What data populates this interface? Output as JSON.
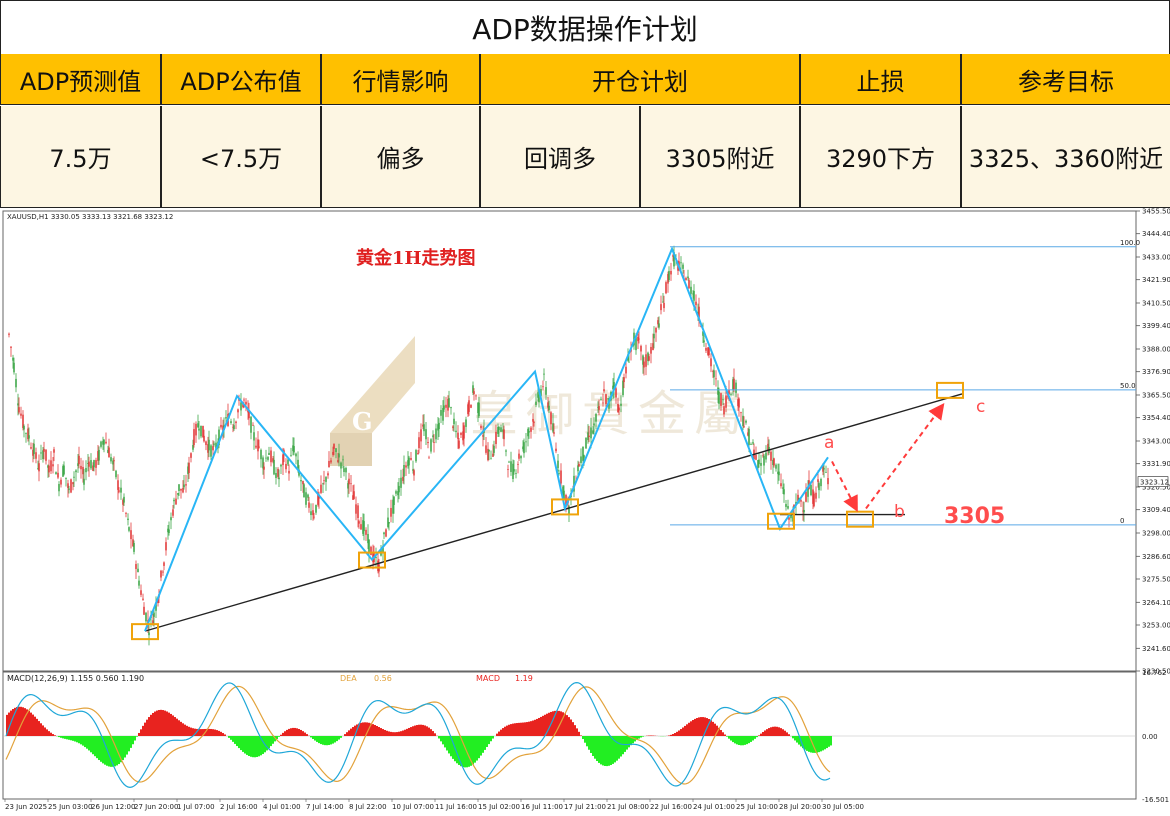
{
  "plan": {
    "title": "ADP数据操作计划",
    "headers": [
      "ADP预测值",
      "ADP公布值",
      "行情影响",
      "开仓计划",
      "止损",
      "参考目标"
    ],
    "values": [
      "7.5万",
      "<7.5万",
      "偏多",
      "回调多",
      "3305附近",
      "3290下方",
      "3325、3360附近"
    ]
  },
  "chart_header": {
    "symbol_info": "XAUUSD,H1  3330.05 3333.13 3321.68 3323.12",
    "title": "黄金1H走势图",
    "watermark": "皇御貴金屬",
    "watermark_logo": "G"
  },
  "chart_data": {
    "type": "line",
    "title": "黄金1H走势图",
    "symbol": "XAUUSD,H1",
    "ohlc": {
      "open": 3330.05,
      "high": 3333.13,
      "low": 3321.68,
      "close": 3323.12
    },
    "y_axis_ticks": [
      "3455.50",
      "3444.40",
      "3433.00",
      "3421.90",
      "3410.50",
      "3399.40",
      "3388.00",
      "3376.90",
      "3365.50",
      "3354.40",
      "3343.00",
      "3331.90",
      "3320.50",
      "3309.40",
      "3298.00",
      "3286.60",
      "3275.50",
      "3264.10",
      "3253.00",
      "3241.60",
      "3230.50"
    ],
    "ylim": [
      3230.5,
      3455.5
    ],
    "last_price_label": "3323.12",
    "x_axis_ticks": [
      "23 Jun 2025",
      "25 Jun 03:00",
      "26 Jun 12:00",
      "27 Jun 20:00",
      "1 Jul 07:00",
      "2 Jul 16:00",
      "4 Jul 01:00",
      "7 Jul 14:00",
      "8 Jul 22:00",
      "10 Jul 07:00",
      "11 Jul 16:00",
      "15 Jul 02:00",
      "16 Jul 11:00",
      "17 Jul 21:00",
      "21 Jul 08:00",
      "22 Jul 16:00",
      "24 Jul 01:00",
      "25 Jul 10:00",
      "28 Jul 20:00",
      "30 Jul 05:00"
    ],
    "price_series": [
      [
        0,
        3395
      ],
      [
        5,
        3380
      ],
      [
        10,
        3360
      ],
      [
        15,
        3350
      ],
      [
        20,
        3345
      ],
      [
        25,
        3338
      ],
      [
        30,
        3330
      ],
      [
        35,
        3340
      ],
      [
        40,
        3328
      ],
      [
        45,
        3336
      ],
      [
        50,
        3322
      ],
      [
        55,
        3330
      ],
      [
        60,
        3318
      ],
      [
        65,
        3326
      ],
      [
        70,
        3332
      ],
      [
        75,
        3325
      ],
      [
        80,
        3334
      ],
      [
        85,
        3330
      ],
      [
        90,
        3336
      ],
      [
        95,
        3345
      ],
      [
        100,
        3338
      ],
      [
        105,
        3330
      ],
      [
        110,
        3320
      ],
      [
        115,
        3312
      ],
      [
        120,
        3300
      ],
      [
        125,
        3290
      ],
      [
        130,
        3275
      ],
      [
        135,
        3262
      ],
      [
        140,
        3252
      ],
      [
        145,
        3258
      ],
      [
        150,
        3270
      ],
      [
        155,
        3285
      ],
      [
        160,
        3300
      ],
      [
        165,
        3312
      ],
      [
        170,
        3320
      ],
      [
        175,
        3318
      ],
      [
        180,
        3330
      ],
      [
        185,
        3345
      ],
      [
        190,
        3352
      ],
      [
        195,
        3345
      ],
      [
        200,
        3340
      ],
      [
        205,
        3338
      ],
      [
        210,
        3345
      ],
      [
        215,
        3350
      ],
      [
        220,
        3355
      ],
      [
        225,
        3352
      ],
      [
        230,
        3360
      ],
      [
        235,
        3362
      ],
      [
        240,
        3355
      ],
      [
        245,
        3345
      ],
      [
        250,
        3340
      ],
      [
        255,
        3332
      ],
      [
        260,
        3338
      ],
      [
        265,
        3330
      ],
      [
        270,
        3325
      ],
      [
        275,
        3335
      ],
      [
        280,
        3330
      ],
      [
        285,
        3340
      ],
      [
        290,
        3328
      ],
      [
        295,
        3318
      ],
      [
        300,
        3312
      ],
      [
        305,
        3308
      ],
      [
        310,
        3315
      ],
      [
        315,
        3322
      ],
      [
        320,
        3330
      ],
      [
        325,
        3338
      ],
      [
        330,
        3335
      ],
      [
        335,
        3330
      ],
      [
        340,
        3322
      ],
      [
        345,
        3315
      ],
      [
        350,
        3306
      ],
      [
        355,
        3300
      ],
      [
        360,
        3292
      ],
      [
        365,
        3285
      ],
      [
        370,
        3282
      ],
      [
        375,
        3295
      ],
      [
        380,
        3305
      ],
      [
        385,
        3312
      ],
      [
        390,
        3320
      ],
      [
        395,
        3328
      ],
      [
        400,
        3335
      ],
      [
        405,
        3330
      ],
      [
        410,
        3342
      ],
      [
        415,
        3350
      ],
      [
        420,
        3338
      ],
      [
        425,
        3345
      ],
      [
        430,
        3352
      ],
      [
        435,
        3358
      ],
      [
        440,
        3362
      ],
      [
        445,
        3350
      ],
      [
        450,
        3342
      ],
      [
        455,
        3348
      ],
      [
        460,
        3360
      ],
      [
        465,
        3368
      ],
      [
        470,
        3358
      ],
      [
        475,
        3345
      ],
      [
        480,
        3335
      ],
      [
        485,
        3340
      ],
      [
        490,
        3350
      ],
      [
        495,
        3345
      ],
      [
        500,
        3330
      ],
      [
        505,
        3328
      ],
      [
        510,
        3335
      ],
      [
        515,
        3340
      ],
      [
        520,
        3348
      ],
      [
        525,
        3355
      ],
      [
        530,
        3365
      ],
      [
        535,
        3372
      ],
      [
        540,
        3360
      ],
      [
        545,
        3345
      ],
      [
        550,
        3330
      ],
      [
        555,
        3318
      ],
      [
        560,
        3310
      ],
      [
        565,
        3322
      ],
      [
        570,
        3332
      ],
      [
        575,
        3338
      ],
      [
        580,
        3345
      ],
      [
        585,
        3350
      ],
      [
        590,
        3358
      ],
      [
        595,
        3366
      ],
      [
        600,
        3360
      ],
      [
        605,
        3372
      ],
      [
        610,
        3358
      ],
      [
        615,
        3372
      ],
      [
        620,
        3385
      ],
      [
        625,
        3392
      ],
      [
        630,
        3390
      ],
      [
        635,
        3380
      ],
      [
        640,
        3385
      ],
      [
        645,
        3392
      ],
      [
        650,
        3402
      ],
      [
        655,
        3412
      ],
      [
        660,
        3425
      ],
      [
        665,
        3432
      ],
      [
        670,
        3428
      ],
      [
        675,
        3425
      ],
      [
        680,
        3420
      ],
      [
        685,
        3415
      ],
      [
        690,
        3405
      ],
      [
        695,
        3395
      ],
      [
        700,
        3385
      ],
      [
        705,
        3375
      ],
      [
        710,
        3365
      ],
      [
        715,
        3360
      ],
      [
        720,
        3368
      ],
      [
        725,
        3372
      ],
      [
        730,
        3362
      ],
      [
        735,
        3352
      ],
      [
        740,
        3345
      ],
      [
        745,
        3338
      ],
      [
        750,
        3330
      ],
      [
        755,
        3335
      ],
      [
        760,
        3340
      ],
      [
        765,
        3332
      ],
      [
        770,
        3325
      ],
      [
        775,
        3318
      ],
      [
        780,
        3305
      ],
      [
        785,
        3308
      ],
      [
        790,
        3315
      ],
      [
        795,
        3312
      ],
      [
        800,
        3320
      ],
      [
        805,
        3315
      ],
      [
        810,
        3322
      ],
      [
        815,
        3328
      ],
      [
        820,
        3323
      ]
    ],
    "zigzag_highs": [
      3365.5,
      3376.9,
      3436.0,
      3331.9
    ],
    "zigzag_lows": [
      3252,
      3285,
      3310,
      3305
    ],
    "trendline": {
      "from": 3250,
      "to": 3366
    },
    "fibonacci": [
      {
        "label": "100.0",
        "value": 3438
      },
      {
        "label": "50.0",
        "value": 3368
      },
      {
        "label": "0",
        "value": 3302
      }
    ],
    "annotations": [
      {
        "label": "a",
        "value": 3340
      },
      {
        "label": "b",
        "value": 3305
      },
      {
        "label": "c",
        "value": 3365
      },
      {
        "label": "3305",
        "value": 3305
      }
    ],
    "indicator": {
      "name": "MACD(12,26,9)",
      "legend": "MACD(12,26,9) 1.155 0.560 1.190",
      "dea_label": "DEA",
      "dea_value": "0.56",
      "macd_label": "MACD",
      "macd_value": "1.19",
      "ticks": [
        "16.762",
        "0.00",
        "-16.501"
      ],
      "ylim": [
        -16.501,
        16.762
      ]
    }
  },
  "colors": {
    "bull": "#e33b3b",
    "bear": "#3fa84a",
    "zigzag": "#29b6f6",
    "trendline": "#222222",
    "fib": "#5aa9e6",
    "box": "#f0a30a",
    "arrow": "#ff3b3b",
    "hist_pos": "#e8231f",
    "hist_neg": "#22ee22",
    "macd_line": "#1fa7d8",
    "signal_line": "#e2a23b"
  }
}
